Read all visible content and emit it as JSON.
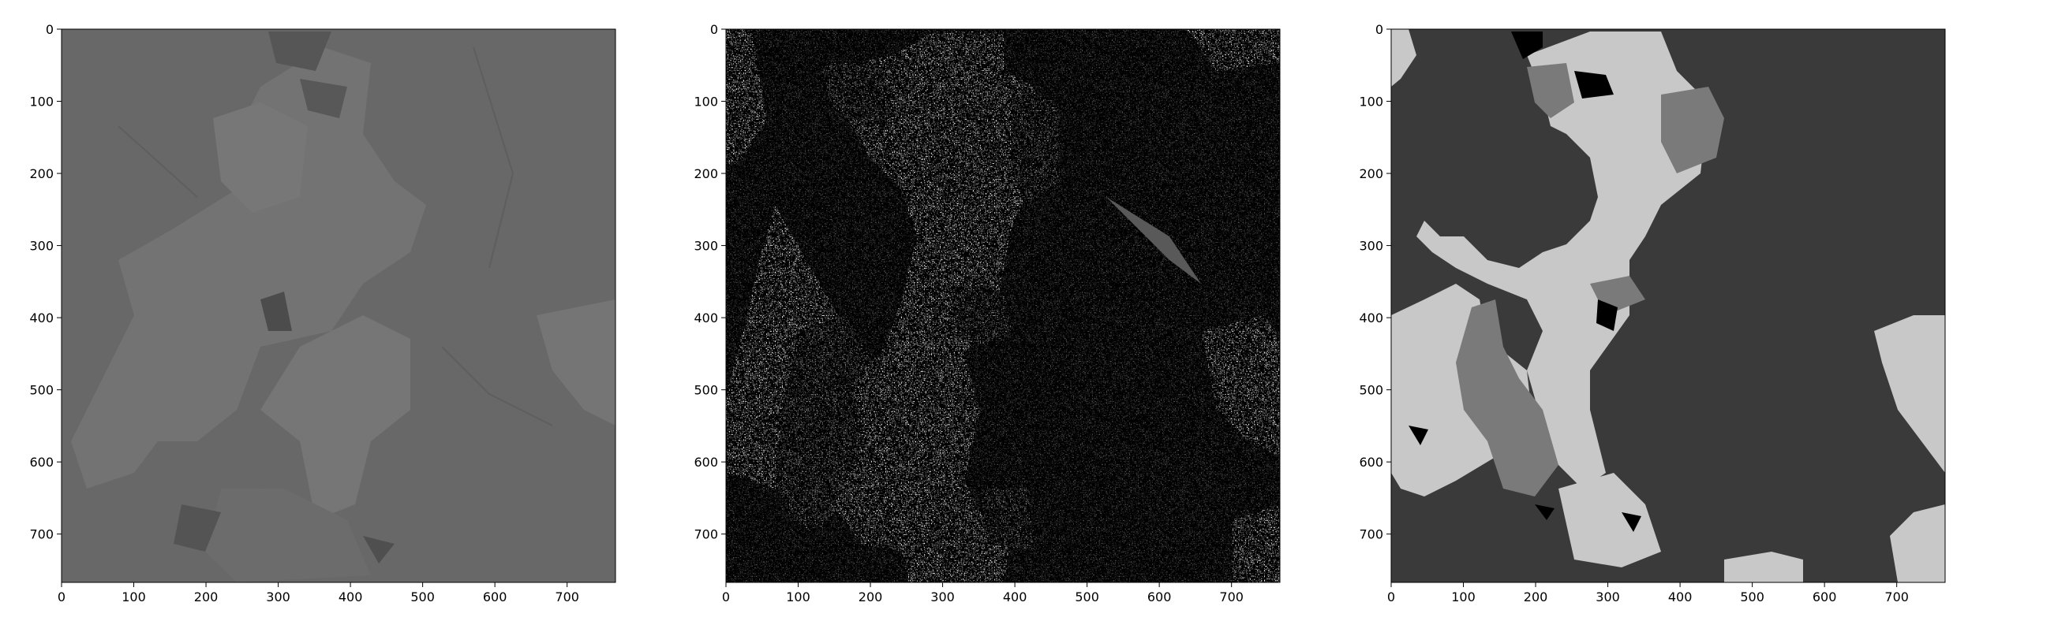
{
  "figure": {
    "panels": [
      {
        "id": "original",
        "description_kind": "grayscale microscopy image",
        "xticks": [
          "0",
          "100",
          "200",
          "300",
          "400",
          "500",
          "600",
          "700"
        ],
        "yticks": [
          "0",
          "100",
          "200",
          "300",
          "400",
          "500",
          "600",
          "700"
        ]
      },
      {
        "id": "pixel-classification",
        "description_kind": "pixel-level segmentation map",
        "xticks": [
          "0",
          "100",
          "200",
          "300",
          "400",
          "500",
          "600",
          "700"
        ],
        "yticks": [
          "0",
          "100",
          "200",
          "300",
          "400",
          "500",
          "600",
          "700"
        ]
      },
      {
        "id": "smoothed-segmentation",
        "description_kind": "smoothed region segmentation map",
        "xticks": [
          "0",
          "100",
          "200",
          "300",
          "400",
          "500",
          "600",
          "700"
        ],
        "yticks": [
          "0",
          "100",
          "200",
          "300",
          "400",
          "500",
          "600",
          "700"
        ]
      }
    ],
    "axis_range": [
      0,
      767
    ],
    "colors": {
      "background_dark": "#595959",
      "background_darker": "#3a3a3a",
      "phase_light": "#a6a6a6",
      "phase_lighter": "#c8c8c8",
      "phase_mid": "#7a7a7a",
      "phase_white": "#ffffff",
      "phase_black": "#000000"
    }
  }
}
